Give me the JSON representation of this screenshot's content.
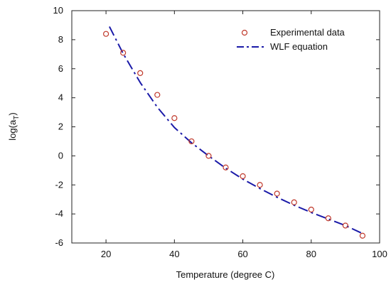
{
  "chart_data": {
    "type": "scatter",
    "xlabel": "Temperature (degree C)",
    "ylabel_main": "log(a",
    "ylabel_sub": "T",
    "ylabel_close": ")",
    "xlim": [
      10,
      100
    ],
    "ylim": [
      -6,
      10
    ],
    "x_ticks": [
      20,
      40,
      60,
      80,
      100
    ],
    "y_ticks": [
      -6,
      -4,
      -2,
      0,
      2,
      4,
      6,
      8,
      10
    ],
    "grid": false,
    "legend_position": "top-right",
    "series": [
      {
        "name": "Experimental data",
        "kind": "markers",
        "marker": "open-circle",
        "color": "#c0392b",
        "x": [
          20,
          25,
          30,
          35,
          40,
          45,
          50,
          55,
          60,
          65,
          70,
          75,
          80,
          85,
          90,
          95
        ],
        "y": [
          8.4,
          7.1,
          5.7,
          4.2,
          2.6,
          1.0,
          0.0,
          -0.8,
          -1.4,
          -2.0,
          -2.6,
          -3.2,
          -3.7,
          -4.3,
          -4.8,
          -5.5
        ]
      },
      {
        "name": "WLF equation",
        "kind": "dashed-line",
        "color": "#1a1aa8",
        "x": [
          21,
          25,
          30,
          35,
          40,
          45,
          50,
          55,
          60,
          65,
          70,
          75,
          80,
          85,
          90,
          95
        ],
        "y": [
          8.9,
          7.05,
          5.05,
          3.35,
          1.95,
          0.9,
          0.0,
          -0.85,
          -1.6,
          -2.25,
          -2.85,
          -3.4,
          -3.9,
          -4.35,
          -4.8,
          -5.35
        ]
      }
    ]
  }
}
